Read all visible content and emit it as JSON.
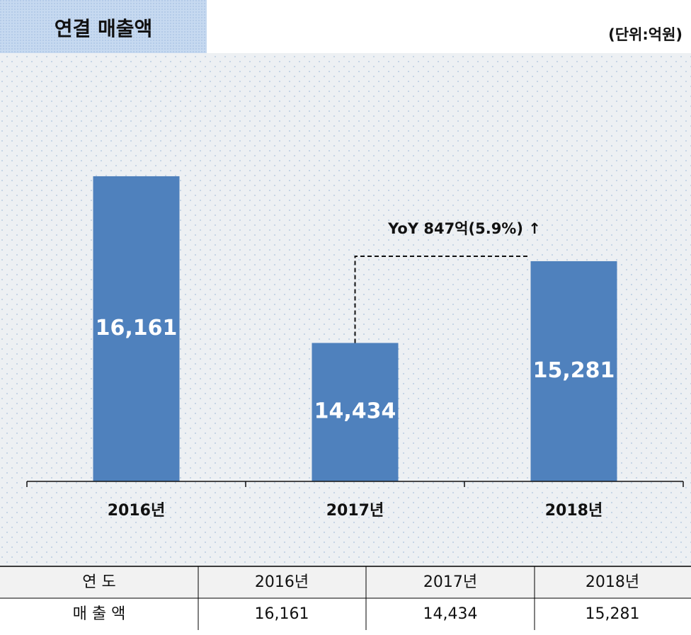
{
  "header": {
    "title": "연결 매출액",
    "unit": "(단위:억원)"
  },
  "chart_data": {
    "type": "bar",
    "categories": [
      "2016년",
      "2017년",
      "2018년"
    ],
    "values": [
      16161,
      14434,
      15281
    ],
    "value_labels": [
      "16,161",
      "14,434",
      "15,281"
    ],
    "color": "#4f81bd",
    "ylim": [
      13000,
      17400
    ],
    "annotation": "YoY 847억(5.9%) ↑"
  },
  "table": {
    "rows": [
      [
        "연 도",
        "2016년",
        "2017년",
        "2018년"
      ],
      [
        "매 출 액",
        "16,161",
        "14,434",
        "15,281"
      ]
    ]
  }
}
